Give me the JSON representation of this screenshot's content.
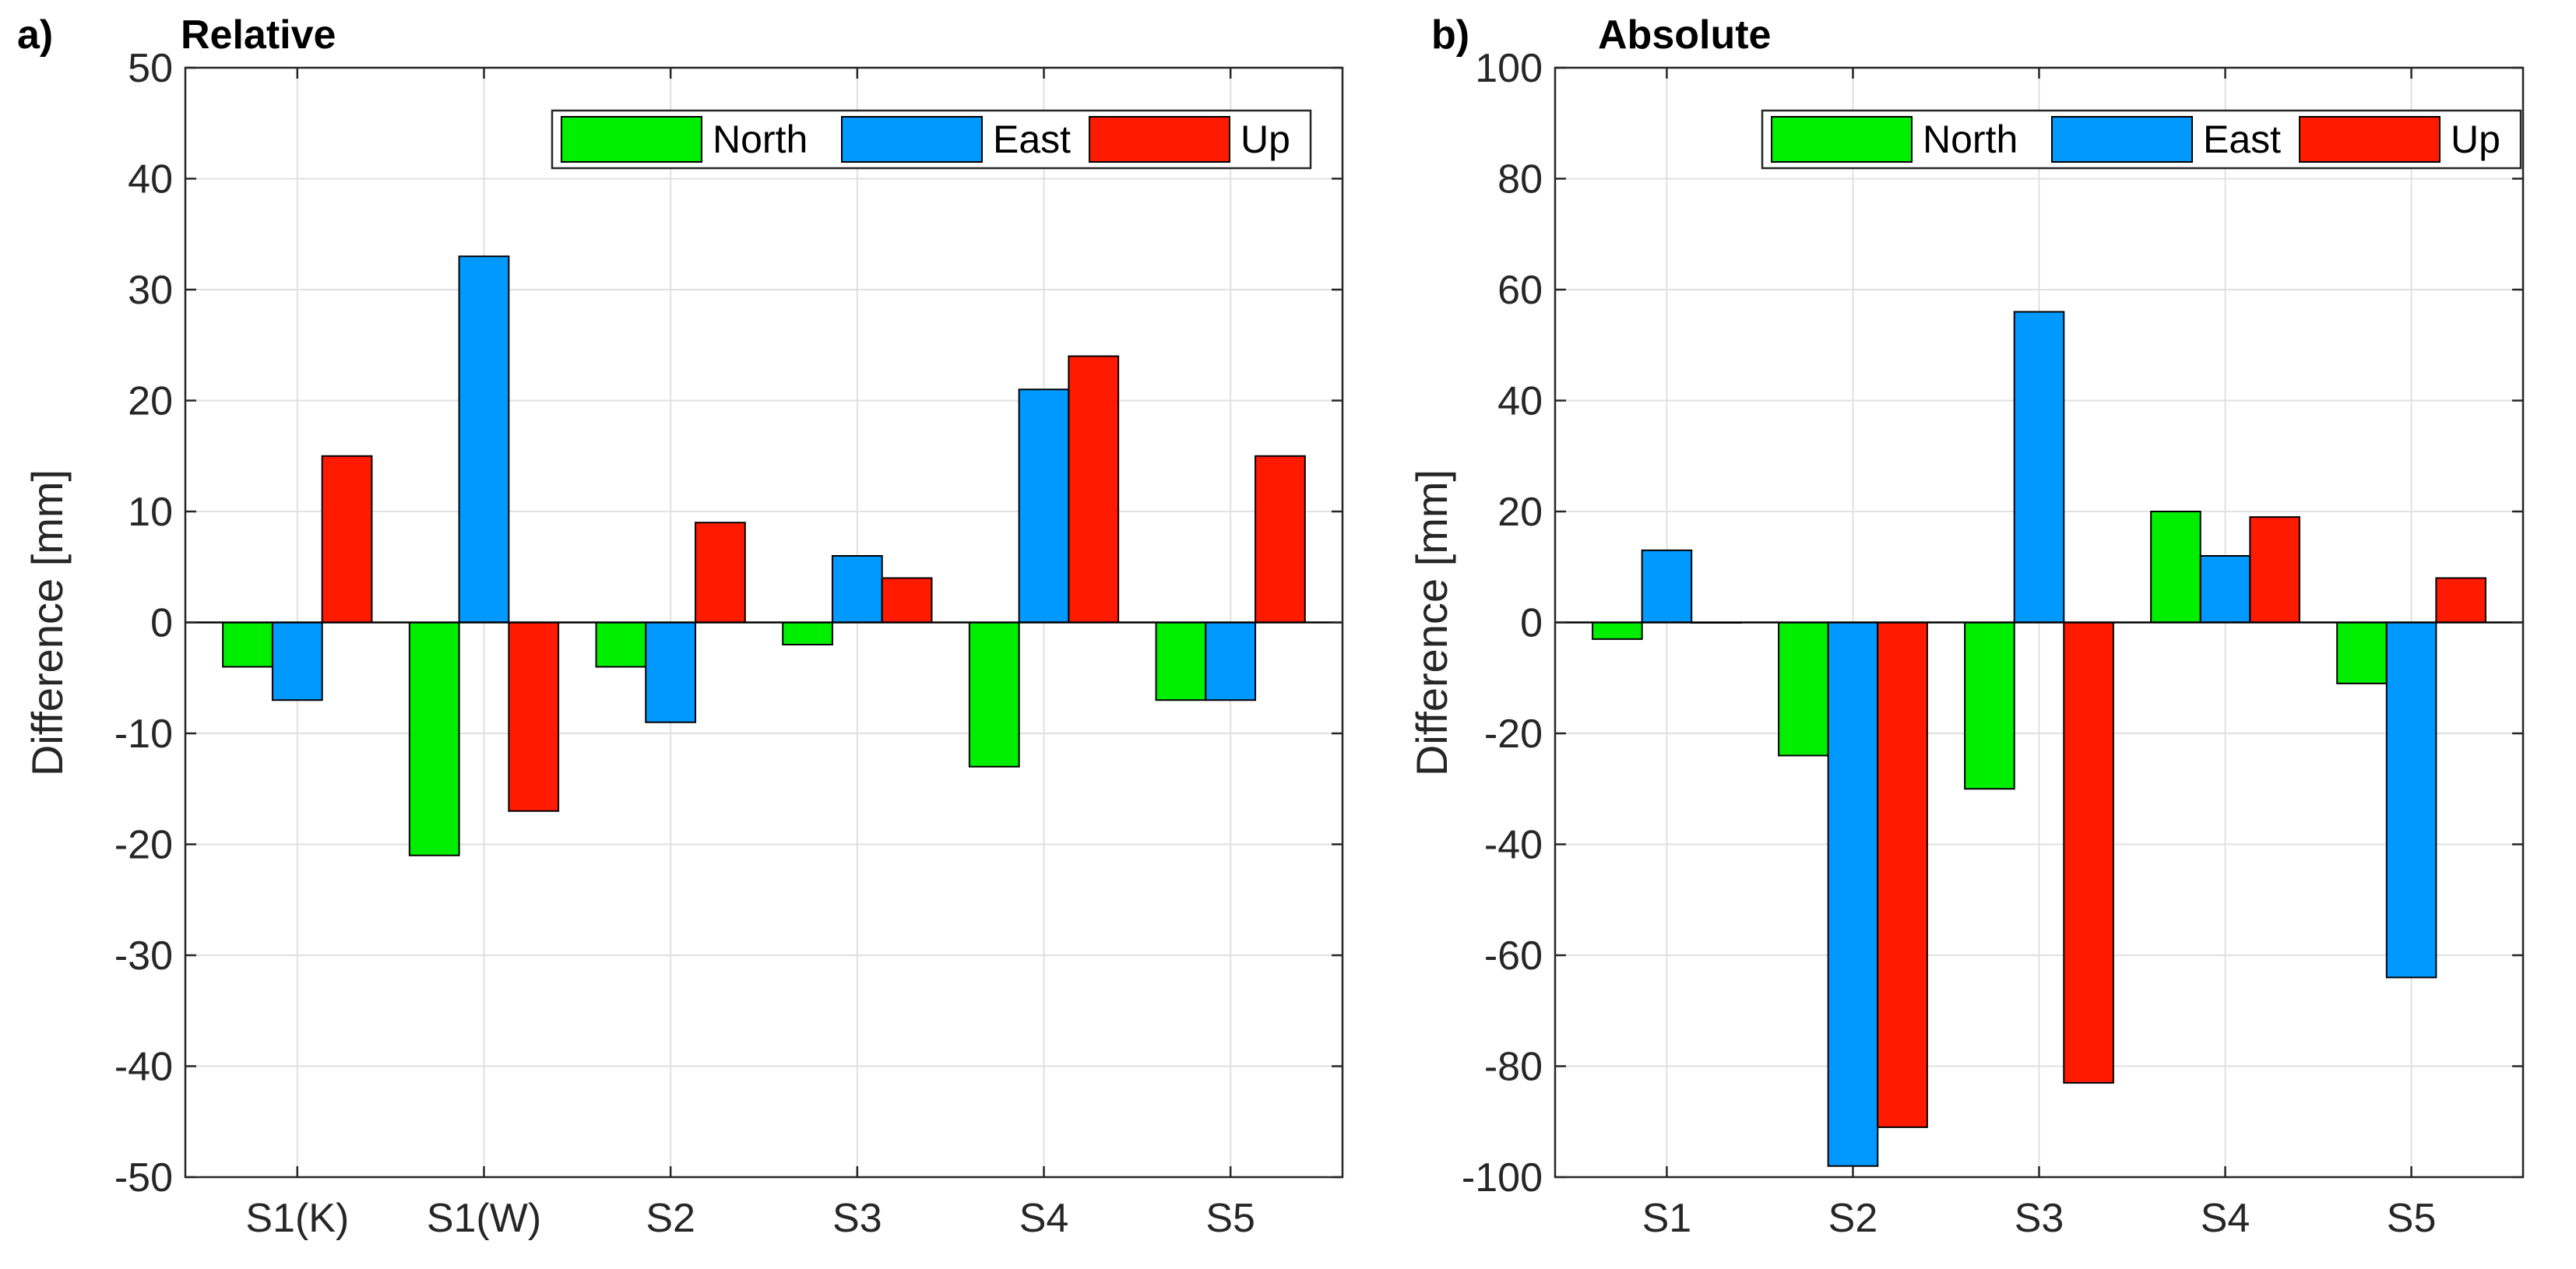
{
  "colors": {
    "North": "#00ee00",
    "East": "#0099ff",
    "Up": "#ff1a00",
    "grid": "#e1e1e1",
    "axis": "#262626"
  },
  "chart_data": [
    {
      "type": "bar",
      "panel_letter": "a)",
      "title": "Relative",
      "ylabel": "Difference [mm]",
      "xlabel": "",
      "ylim": [
        -50,
        50
      ],
      "yticks": [
        -50,
        -40,
        -30,
        -20,
        -10,
        0,
        10,
        20,
        30,
        40,
        50
      ],
      "grid": true,
      "legend_position": "top-right",
      "categories": [
        "S1(K)",
        "S1(W)",
        "S2",
        "S3",
        "S4",
        "S5"
      ],
      "series": [
        {
          "name": "North",
          "values": [
            -4,
            -21,
            -4,
            -2,
            -13,
            -7
          ]
        },
        {
          "name": "East",
          "values": [
            -7,
            33,
            -9,
            6,
            21,
            -7
          ]
        },
        {
          "name": "Up",
          "values": [
            15,
            -17,
            9,
            4,
            24,
            15
          ]
        }
      ]
    },
    {
      "type": "bar",
      "panel_letter": "b)",
      "title": "Absolute",
      "ylabel": "Difference [mm]",
      "xlabel": "",
      "ylim": [
        -100,
        100
      ],
      "yticks": [
        -100,
        -80,
        -60,
        -40,
        -20,
        0,
        20,
        40,
        60,
        80,
        100
      ],
      "grid": true,
      "legend_position": "top-right",
      "categories": [
        "S1",
        "S2",
        "S3",
        "S4",
        "S5"
      ],
      "series": [
        {
          "name": "North",
          "values": [
            -3,
            -24,
            -30,
            20,
            -11
          ]
        },
        {
          "name": "East",
          "values": [
            13,
            -98,
            56,
            12,
            -64
          ]
        },
        {
          "name": "Up",
          "values": [
            0,
            -91,
            -83,
            19,
            8
          ]
        }
      ]
    }
  ]
}
